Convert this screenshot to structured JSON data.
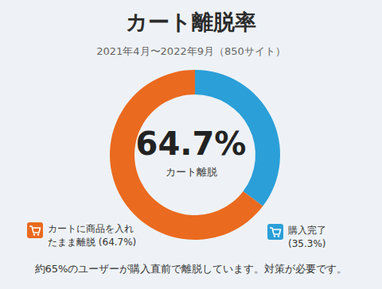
{
  "chart_data": {
    "type": "pie",
    "title": "カート離脱率",
    "subtitle": "2021年4月〜2022年9月（850サイト）",
    "categories": [
      "カートに商品を入れたまま離脱 (64.7%)",
      "購入完了 (35.3%)"
    ],
    "values": [
      64.7,
      35.3
    ],
    "colors": [
      "#ea6a1f",
      "#2b9fd8"
    ],
    "center_text": "64.7%",
    "center_caption": "カート離脱",
    "footnote": "約65%のユーザーが購入直前で離脱しています。対策が必要です。"
  }
}
